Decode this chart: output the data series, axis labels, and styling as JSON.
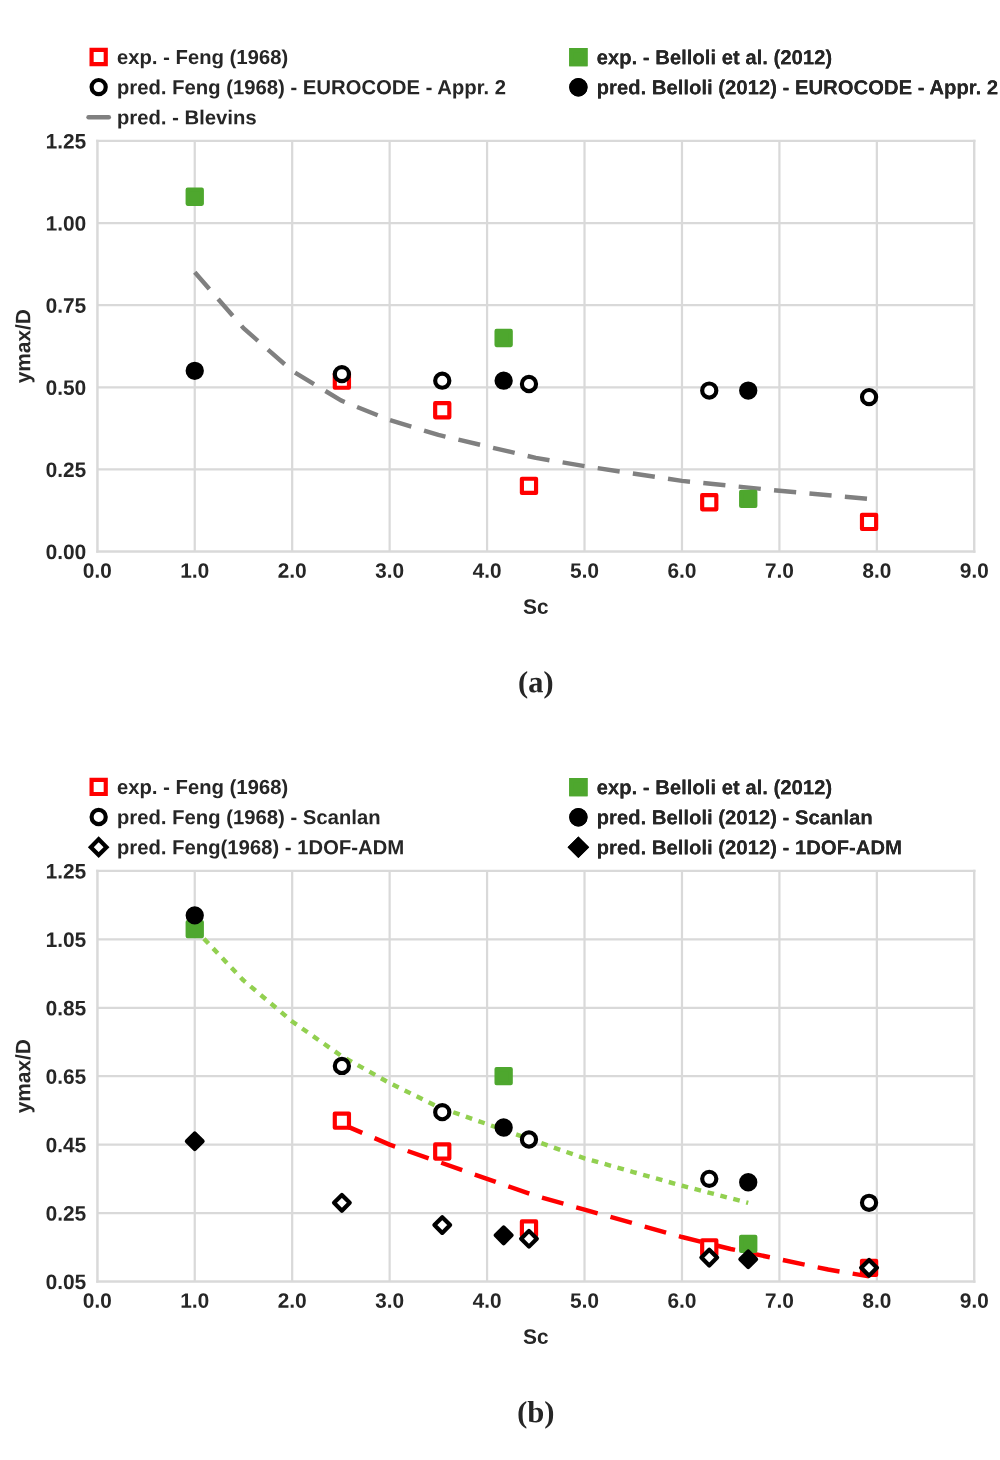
{
  "chart_data": [
    {
      "type": "scatter",
      "xlabel": "Sc",
      "ylabel": "ymax/D",
      "annotations": [
        "(a)"
      ],
      "xlim": [
        0,
        9
      ],
      "xticks": [
        {
          "value": 0,
          "label": "0.0"
        },
        {
          "value": 1,
          "label": "1.0"
        },
        {
          "value": 2,
          "label": "2.0"
        },
        {
          "value": 3,
          "label": "3.0"
        },
        {
          "value": 4,
          "label": "4.0"
        },
        {
          "value": 5,
          "label": "5.0"
        },
        {
          "value": 6,
          "label": "6.0"
        },
        {
          "value": 7,
          "label": "7.0"
        },
        {
          "value": 8,
          "label": "8.0"
        },
        {
          "value": 9,
          "label": "9.0"
        }
      ],
      "ylim": [
        0,
        1.25
      ],
      "yticks": [
        {
          "value": 0,
          "label": "0.00"
        },
        {
          "value": 0.25,
          "label": "0.25"
        },
        {
          "value": 0.5,
          "label": "0.50"
        },
        {
          "value": 0.75,
          "label": "0.75"
        },
        {
          "value": 1.0,
          "label": "1.00"
        },
        {
          "value": 1.25,
          "label": "1.25"
        }
      ],
      "grid": true,
      "legend": "top",
      "series": [
        {
          "name": "exp. - Feng (1968)",
          "marker": "square",
          "color": "#ff0000",
          "x": [
            2.51,
            3.54,
            4.43,
            6.28,
            7.92
          ],
          "values": [
            0.52,
            0.43,
            0.2,
            0.15,
            0.09
          ]
        },
        {
          "name": "exp. - Belloli et al. (2012)",
          "marker": "square",
          "color": "#4ea72e",
          "x": [
            1.0,
            4.17,
            6.68
          ],
          "values": [
            1.08,
            0.65,
            0.16
          ]
        },
        {
          "name": "pred. Feng (1968) - EUROCODE - Appr. 2",
          "marker": "circle",
          "color": "#000000",
          "x": [
            2.51,
            3.54,
            4.43,
            6.28,
            7.92
          ],
          "values": [
            0.54,
            0.52,
            0.51,
            0.49,
            0.47
          ]
        },
        {
          "name": "pred. Belloli (2012) - EUROCODE - Appr. 2",
          "marker": "circle",
          "color": "#000000",
          "x": [
            1.0,
            4.17,
            6.68
          ],
          "values": [
            0.55,
            0.52,
            0.49
          ]
        },
        {
          "name": "pred. - Blevins",
          "type": "line",
          "marker": "none",
          "line_style": "dashed",
          "color": "#808080",
          "x": [
            1.0,
            1.5,
            2.0,
            2.5,
            3.0,
            3.5,
            4.0,
            4.5,
            5.0,
            6.0,
            7.0,
            7.92
          ],
          "values": [
            0.85,
            0.68,
            0.55,
            0.46,
            0.4,
            0.355,
            0.32,
            0.285,
            0.26,
            0.215,
            0.185,
            0.16
          ]
        }
      ]
    },
    {
      "type": "scatter",
      "xlabel": "Sc",
      "ylabel": "ymax/D",
      "annotations": [
        "(b)"
      ],
      "xlim": [
        0,
        9
      ],
      "xticks": [
        {
          "value": 0,
          "label": "0.0"
        },
        {
          "value": 1,
          "label": "1.0"
        },
        {
          "value": 2,
          "label": "2.0"
        },
        {
          "value": 3,
          "label": "3.0"
        },
        {
          "value": 4,
          "label": "4.0"
        },
        {
          "value": 5,
          "label": "5.0"
        },
        {
          "value": 6,
          "label": "6.0"
        },
        {
          "value": 7,
          "label": "7.0"
        },
        {
          "value": 8,
          "label": "8.0"
        },
        {
          "value": 9,
          "label": "9.0"
        }
      ],
      "ylim": [
        0.05,
        1.25
      ],
      "yticks": [
        0.05,
        0.25,
        0.45,
        0.65,
        0.85,
        1.05,
        1.25
      ],
      "grid": true,
      "legend": "top",
      "series": [
        {
          "name": "exp. - Feng (1968)",
          "marker": "square",
          "color": "#ff0000",
          "x": [
            2.51,
            3.54,
            4.43,
            6.28,
            7.92
          ],
          "values": [
            0.52,
            0.43,
            0.205,
            0.15,
            0.09
          ]
        },
        {
          "name": "exp. - Belloli et al. (2012)",
          "marker": "square",
          "color": "#4ea72e",
          "x": [
            1.0,
            4.17,
            6.68
          ],
          "values": [
            1.08,
            0.65,
            0.16
          ]
        },
        {
          "name": "pred. Feng (1968) - Scanlan",
          "marker": "circle",
          "color": "#000000",
          "x": [
            2.51,
            3.54,
            4.43,
            6.28,
            7.92
          ],
          "values": [
            0.68,
            0.545,
            0.465,
            0.35,
            0.28
          ]
        },
        {
          "name": "pred. Belloli (2012) - Scanlan",
          "marker": "circle",
          "color": "#000000",
          "x": [
            1.0,
            4.17,
            6.68
          ],
          "values": [
            1.12,
            0.5,
            0.34
          ]
        },
        {
          "name": "pred. Feng(1968) - 1DOF-ADM",
          "marker": "diamond",
          "color": "#000000",
          "x": [
            2.51,
            3.54,
            4.43,
            6.28,
            7.92
          ],
          "values": [
            0.28,
            0.215,
            0.175,
            0.12,
            0.09
          ]
        },
        {
          "name": "pred. Belloli (2012) - 1DOF-ADM",
          "marker": "diamond",
          "color": "#000000",
          "x": [
            1.0,
            4.17,
            6.68
          ],
          "values": [
            0.46,
            0.185,
            0.115
          ]
        },
        {
          "type": "line",
          "marker": "none",
          "line_style": "dotted",
          "color": "#92d050",
          "x": [
            1.0,
            1.5,
            2.0,
            2.5,
            3.0,
            3.5,
            4.0,
            4.5,
            5.0,
            5.5,
            6.0,
            6.68
          ],
          "values": [
            1.08,
            0.93,
            0.81,
            0.71,
            0.63,
            0.56,
            0.51,
            0.46,
            0.41,
            0.37,
            0.33,
            0.28
          ]
        },
        {
          "type": "line",
          "marker": "none",
          "line_style": "dashed",
          "color": "#ff0000",
          "x": [
            2.51,
            3.0,
            3.5,
            4.0,
            4.5,
            5.0,
            5.5,
            6.0,
            6.5,
            7.0,
            7.5,
            7.92
          ],
          "values": [
            0.51,
            0.45,
            0.4,
            0.35,
            0.3,
            0.26,
            0.22,
            0.18,
            0.145,
            0.115,
            0.085,
            0.065
          ]
        }
      ]
    }
  ]
}
